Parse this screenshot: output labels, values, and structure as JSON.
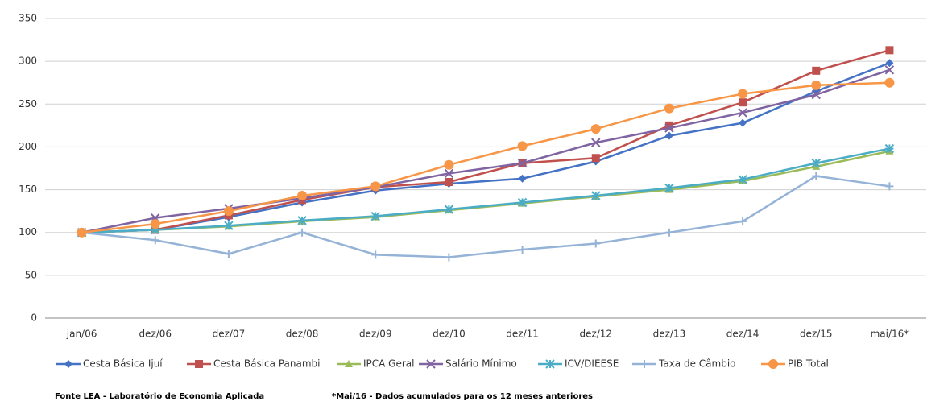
{
  "chart_data": {
    "type": "line",
    "categories": [
      "jan/06",
      "dez/06",
      "dez/07",
      "dez/08",
      "dez/09",
      "dez/10",
      "dez/11",
      "dez/12",
      "dez/13",
      "dez/14",
      "dez/15",
      "mai/16*"
    ],
    "series": [
      {
        "name": "Cesta Básica Ijuí",
        "color": "#4472c4",
        "marker": "diamond",
        "values": [
          100,
          103,
          118,
          135,
          149,
          157,
          163,
          183,
          213,
          228,
          265,
          298
        ]
      },
      {
        "name": "Cesta Básica Panambi",
        "color": "#c0504d",
        "marker": "square",
        "values": [
          100,
          103,
          120,
          138,
          153,
          159,
          181,
          187,
          225,
          252,
          289,
          313
        ]
      },
      {
        "name": "IPCA Geral",
        "color": "#9bbb59",
        "marker": "triangle",
        "values": [
          100,
          103,
          107,
          113,
          118,
          126,
          134,
          142,
          150,
          160,
          177,
          195
        ]
      },
      {
        "name": "Salário Mínimo",
        "color": "#8064a2",
        "marker": "x",
        "values": [
          100,
          117,
          128,
          140,
          153,
          169,
          181,
          205,
          222,
          240,
          261,
          290
        ]
      },
      {
        "name": "ICV/DIEESE",
        "color": "#4bacc6",
        "marker": "star",
        "values": [
          100,
          103,
          108,
          114,
          119,
          127,
          135,
          143,
          152,
          162,
          181,
          198
        ]
      },
      {
        "name": "Taxa de Câmbio",
        "color": "#95b3d7",
        "marker": "plus",
        "values": [
          100,
          91,
          75,
          100,
          74,
          71,
          80,
          87,
          100,
          113,
          166,
          154
        ]
      },
      {
        "name": "PIB Total",
        "color": "#f79646",
        "marker": "circle",
        "values": [
          100,
          110,
          125,
          143,
          154,
          179,
          201,
          221,
          245,
          262,
          272,
          275
        ]
      }
    ],
    "ylim": [
      0,
      350
    ],
    "yticks": [
      0,
      50,
      100,
      150,
      200,
      250,
      300,
      350
    ],
    "grid": true,
    "legend": "bottom",
    "source": "Fonte LEA - Laboratório de Economia Aplicada",
    "note": "*Mai/16 - Dados acumulados para os 12 meses anteriores"
  }
}
